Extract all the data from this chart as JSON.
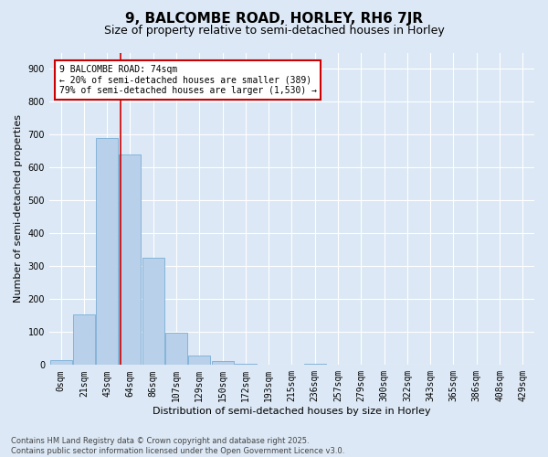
{
  "title": "9, BALCOMBE ROAD, HORLEY, RH6 7JR",
  "subtitle": "Size of property relative to semi-detached houses in Horley",
  "xlabel": "Distribution of semi-detached houses by size in Horley",
  "ylabel": "Number of semi-detached properties",
  "bar_labels": [
    "0sqm",
    "21sqm",
    "43sqm",
    "64sqm",
    "86sqm",
    "107sqm",
    "129sqm",
    "150sqm",
    "172sqm",
    "193sqm",
    "215sqm",
    "236sqm",
    "257sqm",
    "279sqm",
    "300sqm",
    "322sqm",
    "343sqm",
    "365sqm",
    "386sqm",
    "408sqm",
    "429sqm"
  ],
  "bar_values": [
    15,
    155,
    690,
    640,
    325,
    98,
    30,
    12,
    5,
    0,
    0,
    3,
    0,
    0,
    0,
    0,
    0,
    0,
    0,
    0,
    0
  ],
  "bar_color": "#b8d0ea",
  "bar_edge_color": "#7aaed6",
  "vline_x": 2.57,
  "annotation_line1": "9 BALCOMBE ROAD: 74sqm",
  "annotation_line2": "← 20% of semi-detached houses are smaller (389)",
  "annotation_line3": "79% of semi-detached houses are larger (1,530) →",
  "annotation_box_facecolor": "#ffffff",
  "annotation_box_edgecolor": "#cc0000",
  "vline_color": "#cc0000",
  "ylim": [
    0,
    950
  ],
  "yticks": [
    0,
    100,
    200,
    300,
    400,
    500,
    600,
    700,
    800,
    900
  ],
  "background_color": "#dce8f5",
  "plot_background": "#dce8f5",
  "grid_color": "#ffffff",
  "footer_line1": "Contains HM Land Registry data © Crown copyright and database right 2025.",
  "footer_line2": "Contains public sector information licensed under the Open Government Licence v3.0.",
  "title_fontsize": 11,
  "subtitle_fontsize": 9,
  "ylabel_fontsize": 8,
  "xlabel_fontsize": 8,
  "tick_fontsize": 7,
  "annotation_fontsize": 7,
  "footer_fontsize": 6
}
